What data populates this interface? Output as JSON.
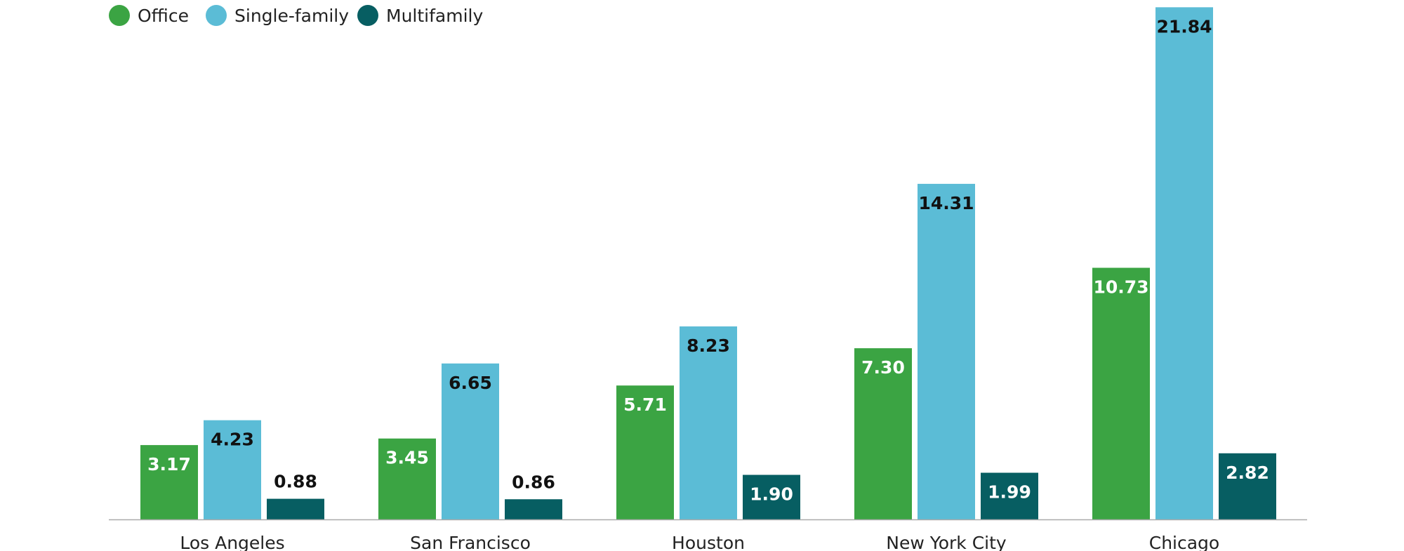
{
  "chart_data": {
    "type": "bar",
    "title": "",
    "xlabel": "",
    "ylabel": "",
    "categories": [
      "Los Angeles",
      "San Francisco",
      "Houston",
      "New York City",
      "Chicago"
    ],
    "series": [
      {
        "name": "Office",
        "color": "#3ba443",
        "label_color": "#ffffff",
        "values": [
          3.17,
          3.45,
          5.71,
          7.3,
          10.73
        ],
        "labels": [
          "3.17",
          "3.45",
          "5.71",
          "7.30",
          "10.73"
        ]
      },
      {
        "name": "Single-family",
        "color": "#5bbcd6",
        "label_color": "#111111",
        "values": [
          4.23,
          6.65,
          8.23,
          14.31,
          21.84
        ],
        "labels": [
          "4.23",
          "6.65",
          "8.23",
          "14.31",
          "21.84"
        ]
      },
      {
        "name": "Multifamily",
        "color": "#075e62",
        "label_color": "#ffffff",
        "label_outside_color": "#111111",
        "values": [
          0.88,
          0.86,
          1.9,
          1.99,
          2.82
        ],
        "labels": [
          "0.88",
          "0.86",
          "1.90",
          "1.99",
          "2.82"
        ]
      }
    ],
    "ylim": [
      0,
      22
    ],
    "grid": false,
    "legend_position": "top-left",
    "baseline_color": "#aaaaaa"
  }
}
